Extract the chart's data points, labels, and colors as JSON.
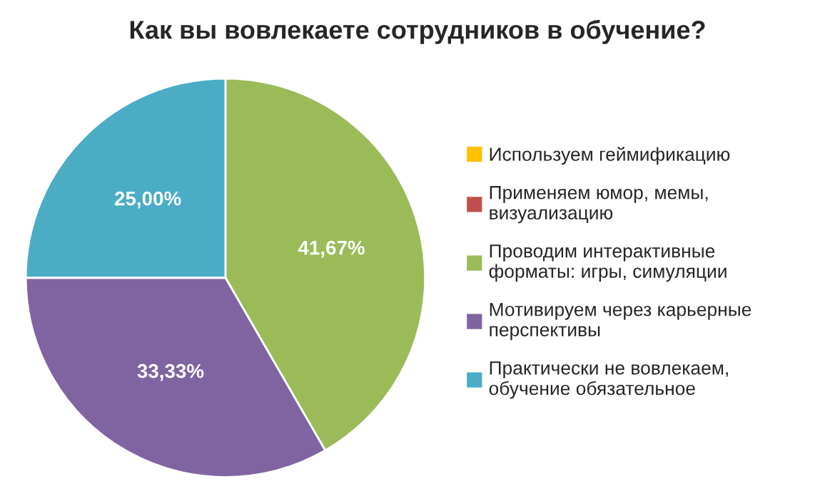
{
  "chart_data": {
    "type": "pie",
    "title": "Как вы вовлекаете сотрудников в обучение?",
    "categories": [
      "Используем геймификацию",
      "Применяем юмор, мемы, визуализацию",
      "Проводим интерактивные форматы: игры, симуляции",
      "Мотивируем через карьерные перспективы",
      "Практически не вовлекаем, обучение обязательное"
    ],
    "values": [
      0,
      0,
      41.67,
      33.33,
      25
    ],
    "colors": [
      "#ffc000",
      "#c0504d",
      "#9bbb59",
      "#8064a2",
      "#4bacc6"
    ],
    "value_labels": [
      null,
      null,
      "41,67%",
      "33,33%",
      "25,00%"
    ],
    "legend": "right"
  }
}
